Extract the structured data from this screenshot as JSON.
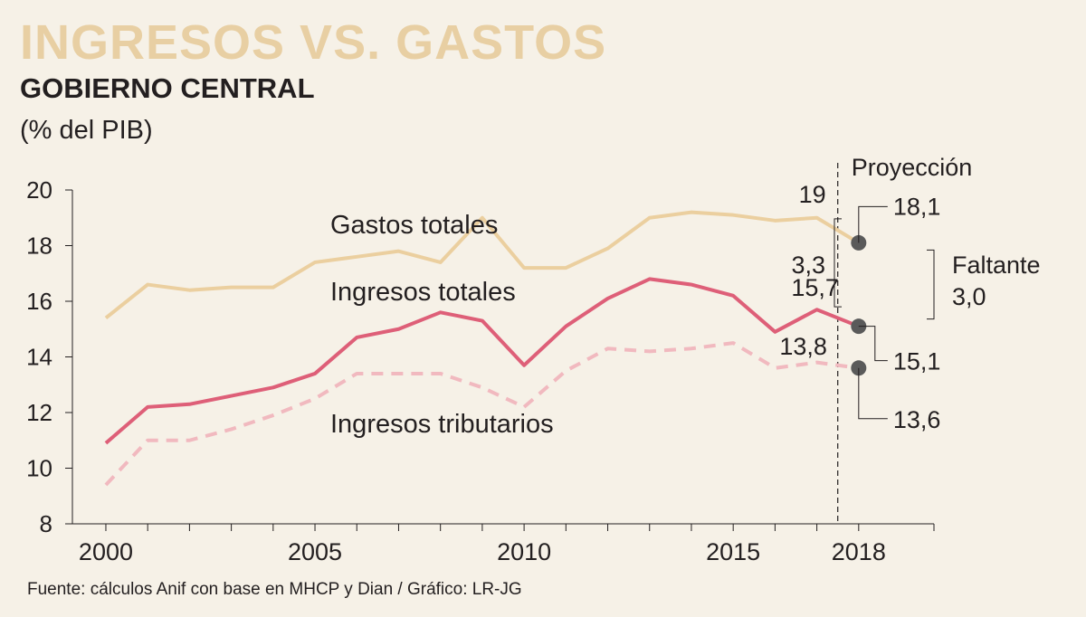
{
  "header": {
    "title": "INGRESOS VS. GASTOS",
    "subtitle": "GOBIERNO CENTRAL",
    "unit": "(% del PIB)"
  },
  "footer": {
    "source": "Fuente: cálculos Anif con base en MHCP y Dian / Gráfico: LR-JG"
  },
  "colors": {
    "background": "#f6f1e7",
    "title": "#e8cfa3",
    "gastos": "#ebcf9f",
    "ingresos": "#de5f78",
    "tributarios": "#f1b9bf",
    "marker": "#5a5a5a"
  },
  "chart_data": {
    "type": "line",
    "x": [
      2000,
      2001,
      2002,
      2003,
      2004,
      2005,
      2006,
      2007,
      2008,
      2009,
      2010,
      2011,
      2012,
      2013,
      2014,
      2015,
      2016,
      2017,
      2018
    ],
    "xticks": [
      "2000",
      "2005",
      "2010",
      "2015",
      "2018"
    ],
    "xlim": [
      1999.2,
      2019.8
    ],
    "ylim": [
      8,
      20
    ],
    "yticks": [
      "8",
      "10",
      "12",
      "14",
      "16",
      "18",
      "20"
    ],
    "series": [
      {
        "name": "Gastos totales",
        "style": "solid",
        "values": [
          15.4,
          16.6,
          16.4,
          16.5,
          16.5,
          17.4,
          17.6,
          17.8,
          17.4,
          19.0,
          17.2,
          17.2,
          17.9,
          19.0,
          19.2,
          19.1,
          18.9,
          19.0,
          18.1
        ]
      },
      {
        "name": "Ingresos totales",
        "style": "solid",
        "values": [
          10.9,
          12.2,
          12.3,
          12.6,
          12.9,
          13.4,
          14.7,
          15.0,
          15.6,
          15.3,
          13.7,
          15.1,
          16.1,
          16.8,
          16.6,
          16.2,
          14.9,
          15.7,
          15.1
        ]
      },
      {
        "name": "Ingresos tributarios",
        "style": "dashed",
        "values": [
          9.4,
          11.0,
          11.0,
          11.4,
          11.9,
          12.5,
          13.4,
          13.4,
          13.4,
          12.9,
          12.2,
          13.5,
          14.3,
          14.2,
          14.3,
          14.5,
          13.6,
          13.8,
          13.6
        ]
      }
    ],
    "projection": {
      "label": "Proyección",
      "x": 2017.5
    },
    "annotations": {
      "gastos_2017": "19",
      "ingresos_2017": "15,7",
      "tributarios_2017": "13,8",
      "gap_2017": "3,3",
      "gastos_2018": "18,1",
      "ingresos_2018": "15,1",
      "tributarios_2018": "13,6",
      "faltante_label": "Faltante",
      "faltante_value": "3,0"
    }
  }
}
